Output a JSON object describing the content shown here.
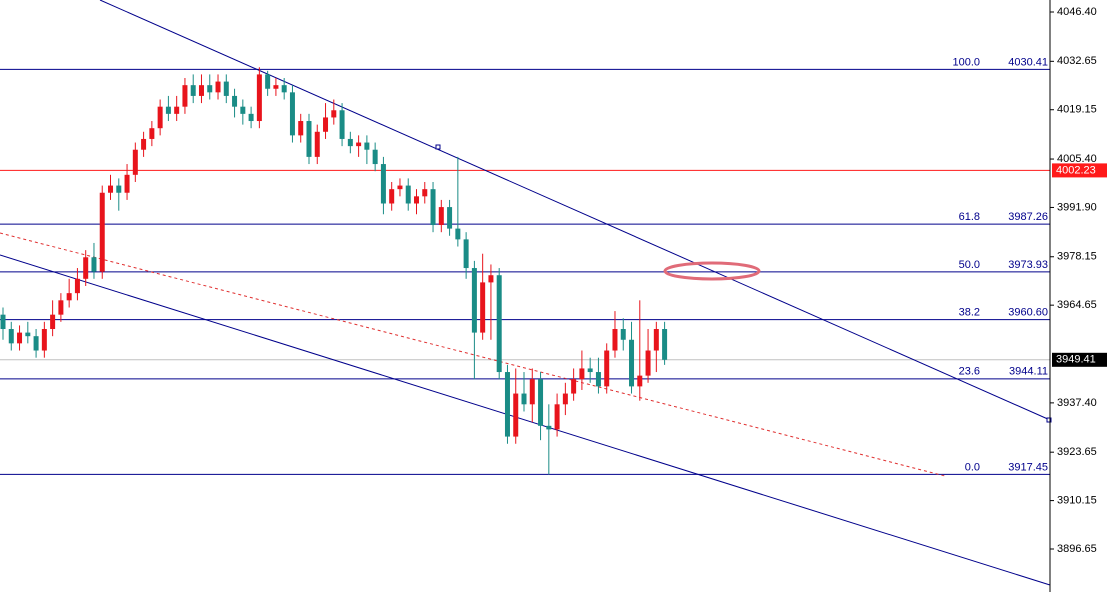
{
  "chart_data": {
    "type": "candlestick",
    "up_color": "#e8141c",
    "down_color": "#1a8c86",
    "open": [
      3962,
      3958,
      3954,
      3957,
      3956,
      3952,
      3958,
      3962,
      3966,
      3968,
      3972,
      3978,
      3974,
      3996,
      3998,
      3996,
      4001,
      4008,
      4011,
      4014,
      4020,
      4018,
      4020,
      4026,
      4023,
      4026,
      4024,
      4027,
      4023,
      4020,
      4018,
      4016,
      4029,
      4025,
      4026,
      4024,
      4012,
      4016,
      4006,
      4013,
      4017,
      4019,
      4011,
      4009,
      4010,
      4008,
      4004,
      3993,
      3997,
      3998,
      3993,
      3995,
      3997,
      3987,
      3992,
      3986,
      3983,
      3975,
      3957,
      3971,
      3973,
      3946,
      3928,
      3940,
      3937,
      3944,
      3931,
      3930,
      3937,
      3940,
      3944,
      3947,
      3946,
      3942,
      3952,
      3958,
      3955,
      3942,
      3945,
      3952,
      3958
    ],
    "high": [
      3964,
      3960,
      3959,
      3960,
      3958,
      3960,
      3966,
      3968,
      3972,
      3975,
      3980,
      3982,
      3998,
      4001,
      4000,
      4004,
      4010,
      4013,
      4016,
      4022,
      4023,
      4023,
      4028,
      4029,
      4029,
      4029,
      4029,
      4029,
      4025,
      4022,
      4020,
      4031,
      4030,
      4028,
      4028,
      4026,
      4018,
      4018,
      4015,
      4021,
      4022,
      4021,
      4013,
      4012,
      4012,
      4010,
      4006,
      3999,
      4000,
      4000,
      3997,
      3999,
      3999,
      3994,
      3994,
      4006,
      3985,
      3977,
      3979,
      3976,
      3975,
      3948,
      3947,
      3946,
      3947,
      3946,
      3937,
      3940,
      3943,
      3947,
      3952,
      3950,
      3950,
      3954,
      3963,
      3961,
      3960,
      3966,
      3958,
      3960,
      3960
    ],
    "low": [
      3955,
      3952,
      3952,
      3954,
      3950,
      3950,
      3956,
      3960,
      3964,
      3966,
      3970,
      3972,
      3972,
      3994,
      3991,
      3994,
      3999,
      4006,
      4009,
      4012,
      4016,
      4016,
      4018,
      4021,
      4021,
      4022,
      4022,
      4021,
      4017,
      4015,
      4014,
      4014,
      4023,
      4023,
      4022,
      4010,
      4010,
      4004,
      4004,
      4011,
      4015,
      4009,
      4007,
      4006,
      4004,
      4002,
      3990,
      3991,
      3995,
      3991,
      3990,
      3993,
      3985,
      3985,
      3984,
      3981,
      3972,
      3944,
      3955,
      3955,
      3944,
      3926,
      3926,
      3935,
      3932,
      3927,
      3917.45,
      3928,
      3934,
      3938,
      3941,
      3943,
      3940,
      3940,
      3950,
      3952,
      3940,
      3938,
      3943,
      3946,
      3948
    ],
    "close": [
      3958,
      3954,
      3957,
      3956,
      3952,
      3958,
      3962,
      3966,
      3968,
      3972,
      3978,
      3974,
      3996,
      3998,
      3996,
      4001,
      4008,
      4011,
      4014,
      4020,
      4018,
      4020,
      4026,
      4023,
      4026,
      4024,
      4027,
      4023,
      4020,
      4018,
      4016,
      4029,
      4025,
      4026,
      4024,
      4012,
      4016,
      4006,
      4013,
      4017,
      4019,
      4011,
      4009,
      4010,
      4008,
      4004,
      3993,
      3997,
      3998,
      3993,
      3995,
      3997,
      3987,
      3992,
      3986,
      3983,
      3975,
      3957,
      3971,
      3973,
      3946,
      3928,
      3940,
      3937,
      3944,
      3931,
      3930,
      3937,
      3940,
      3944,
      3947,
      3946,
      3942,
      3952,
      3958,
      3955,
      3942,
      3945,
      3952,
      3958,
      3949.41
    ],
    "ylim": [
      3884.66,
      4049.75
    ],
    "yticks": [
      {
        "value": 4046.4,
        "label": "4046.40"
      },
      4032.65,
      4019.15,
      {
        "value": 4005.4,
        "label": "4005.40"
      },
      {
        "value": 3991.9,
        "label": "3991.90"
      },
      3978.15,
      3964.65,
      {
        "value": 3937.4,
        "label": "3937.40"
      },
      3923.65,
      3910.15,
      3896.65
    ],
    "fib_color": "#00008b",
    "fib_levels": [
      {
        "level": "100.0",
        "price": 4030.41
      },
      {
        "level": "61.8",
        "price": 3987.26
      },
      {
        "level": "50.0",
        "price": 3973.93
      },
      {
        "level": "38.2",
        "price": {
          "value": 3960.6,
          "label": "3960.60"
        }
      },
      {
        "level": "23.6",
        "price": 3944.11
      },
      {
        "level": "0.0",
        "price": 3917.45
      }
    ],
    "alert_line": {
      "price": 4002.23,
      "color": "#ff1a1a"
    },
    "current_price": 3949.41
  }
}
